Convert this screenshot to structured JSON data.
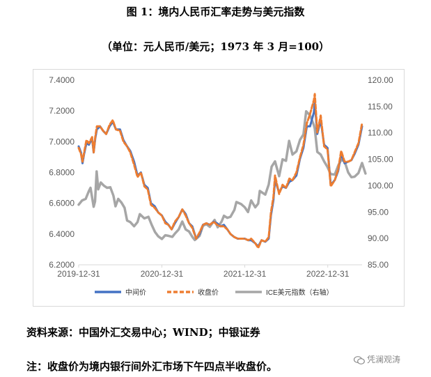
{
  "figure": {
    "title": "图 1：境内人民币汇率走势与美元指数",
    "subtitle": "（单位：元人民币/美元；1973 年 3 月=100）"
  },
  "chart_data": {
    "type": "line",
    "x_labels": [
      "2019-12-31",
      "2020-12-31",
      "2021-12-31",
      "2022-12-31"
    ],
    "x_label_dates": [
      "2019-12-31",
      "2020-12-31",
      "2021-12-31",
      "2022-12-31"
    ],
    "x_range": [
      "2019-12-31",
      "2023-05-31"
    ],
    "y_left": {
      "ticks": [
        "7.4000",
        "7.2000",
        "7.0000",
        "6.8000",
        "6.6000",
        "6.4000",
        "6.2000"
      ],
      "ylim": [
        6.2,
        7.4
      ]
    },
    "y_right": {
      "ticks": [
        "120.00",
        "115.00",
        "110.00",
        "105.00",
        "100.00",
        "95.00",
        "90.00",
        "85.00"
      ],
      "ylim": [
        85,
        120
      ]
    },
    "grid": false,
    "legend_placement": "bottom",
    "series": [
      {
        "name": "中间价",
        "axis": "left",
        "color": "#4472C4",
        "style": "solid",
        "points": [
          [
            "2019-12-31",
            6.97
          ],
          [
            "2020-01-10",
            6.93
          ],
          [
            "2020-01-17",
            6.86
          ],
          [
            "2020-01-24",
            6.92
          ],
          [
            "2020-02-03",
            6.99
          ],
          [
            "2020-02-14",
            6.98
          ],
          [
            "2020-02-28",
            7.02
          ],
          [
            "2020-03-06",
            6.93
          ],
          [
            "2020-03-13",
            7.02
          ],
          [
            "2020-03-20",
            7.08
          ],
          [
            "2020-04-03",
            7.1
          ],
          [
            "2020-04-17",
            7.07
          ],
          [
            "2020-04-30",
            7.05
          ],
          [
            "2020-05-15",
            7.1
          ],
          [
            "2020-05-29",
            7.13
          ],
          [
            "2020-06-12",
            7.08
          ],
          [
            "2020-06-30",
            7.08
          ],
          [
            "2020-07-15",
            7.01
          ],
          [
            "2020-07-31",
            6.97
          ],
          [
            "2020-08-14",
            6.94
          ],
          [
            "2020-08-31",
            6.87
          ],
          [
            "2020-09-15",
            6.78
          ],
          [
            "2020-09-30",
            6.8
          ],
          [
            "2020-10-15",
            6.72
          ],
          [
            "2020-10-30",
            6.7
          ],
          [
            "2020-11-13",
            6.6
          ],
          [
            "2020-11-30",
            6.58
          ],
          [
            "2020-12-15",
            6.54
          ],
          [
            "2020-12-31",
            6.52
          ],
          [
            "2021-01-15",
            6.48
          ],
          [
            "2021-01-29",
            6.46
          ],
          [
            "2021-02-12",
            6.43
          ],
          [
            "2021-02-26",
            6.47
          ],
          [
            "2021-03-15",
            6.51
          ],
          [
            "2021-03-31",
            6.56
          ],
          [
            "2021-04-15",
            6.53
          ],
          [
            "2021-04-30",
            6.47
          ],
          [
            "2021-05-14",
            6.45
          ],
          [
            "2021-05-31",
            6.37
          ],
          [
            "2021-06-15",
            6.4
          ],
          [
            "2021-06-30",
            6.46
          ],
          [
            "2021-07-15",
            6.47
          ],
          [
            "2021-07-30",
            6.46
          ],
          [
            "2021-08-16",
            6.48
          ],
          [
            "2021-08-31",
            6.47
          ],
          [
            "2021-09-15",
            6.45
          ],
          [
            "2021-09-30",
            6.46
          ],
          [
            "2021-10-15",
            6.43
          ],
          [
            "2021-10-29",
            6.4
          ],
          [
            "2021-11-15",
            6.38
          ],
          [
            "2021-11-30",
            6.37
          ],
          [
            "2021-12-15",
            6.37
          ],
          [
            "2021-12-31",
            6.37
          ],
          [
            "2022-01-14",
            6.36
          ],
          [
            "2022-01-28",
            6.36
          ],
          [
            "2022-02-15",
            6.34
          ],
          [
            "2022-02-28",
            6.32
          ],
          [
            "2022-03-15",
            6.36
          ],
          [
            "2022-03-31",
            6.35
          ],
          [
            "2022-04-15",
            6.37
          ],
          [
            "2022-04-25",
            6.52
          ],
          [
            "2022-05-06",
            6.62
          ],
          [
            "2022-05-13",
            6.75
          ],
          [
            "2022-05-31",
            6.67
          ],
          [
            "2022-06-15",
            6.71
          ],
          [
            "2022-06-30",
            6.7
          ],
          [
            "2022-07-15",
            6.74
          ],
          [
            "2022-07-29",
            6.75
          ],
          [
            "2022-08-15",
            6.78
          ],
          [
            "2022-08-31",
            6.89
          ],
          [
            "2022-09-15",
            6.96
          ],
          [
            "2022-09-30",
            7.1
          ],
          [
            "2022-10-14",
            7.1
          ],
          [
            "2022-10-31",
            7.19
          ],
          [
            "2022-11-04",
            7.25
          ],
          [
            "2022-11-15",
            7.05
          ],
          [
            "2022-11-30",
            7.14
          ],
          [
            "2022-12-15",
            6.98
          ],
          [
            "2022-12-30",
            6.96
          ],
          [
            "2023-01-13",
            6.72
          ],
          [
            "2023-01-31",
            6.75
          ],
          [
            "2023-02-15",
            6.81
          ],
          [
            "2023-02-28",
            6.92
          ],
          [
            "2023-03-15",
            6.86
          ],
          [
            "2023-03-31",
            6.87
          ],
          [
            "2023-04-14",
            6.88
          ],
          [
            "2023-04-28",
            6.92
          ],
          [
            "2023-05-15",
            6.98
          ],
          [
            "2023-05-31",
            7.1
          ]
        ]
      },
      {
        "name": "收盘价",
        "axis": "left",
        "color": "#ED7D31",
        "style": "dashed",
        "points": [
          [
            "2019-12-31",
            6.96
          ],
          [
            "2020-01-10",
            6.92
          ],
          [
            "2020-01-17",
            6.87
          ],
          [
            "2020-01-24",
            6.93
          ],
          [
            "2020-02-03",
            7.01
          ],
          [
            "2020-02-14",
            6.99
          ],
          [
            "2020-02-28",
            7.03
          ],
          [
            "2020-03-06",
            6.93
          ],
          [
            "2020-03-13",
            7.03
          ],
          [
            "2020-03-20",
            7.1
          ],
          [
            "2020-04-03",
            7.1
          ],
          [
            "2020-04-17",
            7.07
          ],
          [
            "2020-04-30",
            7.05
          ],
          [
            "2020-05-15",
            7.11
          ],
          [
            "2020-05-29",
            7.14
          ],
          [
            "2020-06-12",
            7.08
          ],
          [
            "2020-06-30",
            7.07
          ],
          [
            "2020-07-15",
            7.0
          ],
          [
            "2020-07-31",
            6.97
          ],
          [
            "2020-08-14",
            6.93
          ],
          [
            "2020-08-31",
            6.85
          ],
          [
            "2020-09-15",
            6.77
          ],
          [
            "2020-09-30",
            6.8
          ],
          [
            "2020-10-15",
            6.71
          ],
          [
            "2020-10-30",
            6.69
          ],
          [
            "2020-11-13",
            6.59
          ],
          [
            "2020-11-30",
            6.57
          ],
          [
            "2020-12-15",
            6.54
          ],
          [
            "2020-12-31",
            6.52
          ],
          [
            "2021-01-15",
            6.47
          ],
          [
            "2021-01-29",
            6.46
          ],
          [
            "2021-02-12",
            6.43
          ],
          [
            "2021-02-26",
            6.48
          ],
          [
            "2021-03-15",
            6.51
          ],
          [
            "2021-03-31",
            6.56
          ],
          [
            "2021-04-15",
            6.52
          ],
          [
            "2021-04-30",
            6.47
          ],
          [
            "2021-05-14",
            6.44
          ],
          [
            "2021-05-31",
            6.37
          ],
          [
            "2021-06-15",
            6.41
          ],
          [
            "2021-06-30",
            6.46
          ],
          [
            "2021-07-15",
            6.47
          ],
          [
            "2021-07-30",
            6.46
          ],
          [
            "2021-08-16",
            6.48
          ],
          [
            "2021-08-31",
            6.46
          ],
          [
            "2021-09-15",
            6.45
          ],
          [
            "2021-09-30",
            6.45
          ],
          [
            "2021-10-15",
            6.43
          ],
          [
            "2021-10-29",
            6.4
          ],
          [
            "2021-11-15",
            6.38
          ],
          [
            "2021-11-30",
            6.37
          ],
          [
            "2021-12-15",
            6.37
          ],
          [
            "2021-12-31",
            6.37
          ],
          [
            "2022-01-14",
            6.36
          ],
          [
            "2022-01-28",
            6.37
          ],
          [
            "2022-02-15",
            6.34
          ],
          [
            "2022-02-28",
            6.31
          ],
          [
            "2022-03-15",
            6.36
          ],
          [
            "2022-03-31",
            6.35
          ],
          [
            "2022-04-15",
            6.38
          ],
          [
            "2022-04-25",
            6.54
          ],
          [
            "2022-05-06",
            6.64
          ],
          [
            "2022-05-13",
            6.78
          ],
          [
            "2022-05-31",
            6.66
          ],
          [
            "2022-06-15",
            6.72
          ],
          [
            "2022-06-30",
            6.7
          ],
          [
            "2022-07-15",
            6.76
          ],
          [
            "2022-07-29",
            6.75
          ],
          [
            "2022-08-15",
            6.8
          ],
          [
            "2022-08-31",
            6.9
          ],
          [
            "2022-09-15",
            6.98
          ],
          [
            "2022-09-30",
            7.12
          ],
          [
            "2022-10-14",
            7.18
          ],
          [
            "2022-10-31",
            7.27
          ],
          [
            "2022-11-04",
            7.31
          ],
          [
            "2022-11-15",
            7.06
          ],
          [
            "2022-11-30",
            7.17
          ],
          [
            "2022-12-15",
            6.97
          ],
          [
            "2022-12-30",
            6.95
          ],
          [
            "2023-01-13",
            6.71
          ],
          [
            "2023-01-31",
            6.75
          ],
          [
            "2023-02-15",
            6.82
          ],
          [
            "2023-02-28",
            6.94
          ],
          [
            "2023-03-15",
            6.87
          ],
          [
            "2023-03-31",
            6.87
          ],
          [
            "2023-04-14",
            6.88
          ],
          [
            "2023-04-28",
            6.93
          ],
          [
            "2023-05-15",
            6.99
          ],
          [
            "2023-05-31",
            7.12
          ]
        ]
      },
      {
        "name": "ICE美元指数（右轴）",
        "axis": "right",
        "color": "#A6A6A6",
        "style": "solid",
        "points": [
          [
            "2019-12-31",
            96.4
          ],
          [
            "2020-01-15",
            97.2
          ],
          [
            "2020-01-31",
            97.5
          ],
          [
            "2020-02-14",
            99.0
          ],
          [
            "2020-02-21",
            99.6
          ],
          [
            "2020-03-06",
            96.0
          ],
          [
            "2020-03-12",
            97.0
          ],
          [
            "2020-03-19",
            102.7
          ],
          [
            "2020-03-26",
            99.3
          ],
          [
            "2020-04-06",
            100.6
          ],
          [
            "2020-04-20",
            100.0
          ],
          [
            "2020-05-04",
            99.6
          ],
          [
            "2020-05-18",
            99.7
          ],
          [
            "2020-06-01",
            98.1
          ],
          [
            "2020-06-10",
            96.1
          ],
          [
            "2020-06-22",
            97.5
          ],
          [
            "2020-07-06",
            96.8
          ],
          [
            "2020-07-20",
            95.8
          ],
          [
            "2020-07-31",
            93.4
          ],
          [
            "2020-08-14",
            93.1
          ],
          [
            "2020-08-31",
            92.3
          ],
          [
            "2020-09-15",
            93.1
          ],
          [
            "2020-09-25",
            94.6
          ],
          [
            "2020-10-15",
            93.8
          ],
          [
            "2020-11-02",
            94.1
          ],
          [
            "2020-11-16",
            92.6
          ],
          [
            "2020-12-01",
            91.2
          ],
          [
            "2020-12-15",
            90.4
          ],
          [
            "2020-12-31",
            89.9
          ],
          [
            "2021-01-15",
            90.6
          ],
          [
            "2021-01-29",
            90.5
          ],
          [
            "2021-02-15",
            90.3
          ],
          [
            "2021-02-26",
            90.9
          ],
          [
            "2021-03-15",
            91.7
          ],
          [
            "2021-03-31",
            93.2
          ],
          [
            "2021-04-15",
            91.7
          ],
          [
            "2021-04-30",
            91.3
          ],
          [
            "2021-05-14",
            90.3
          ],
          [
            "2021-05-25",
            89.7
          ],
          [
            "2021-06-15",
            90.5
          ],
          [
            "2021-06-30",
            92.4
          ],
          [
            "2021-07-15",
            92.7
          ],
          [
            "2021-07-30",
            92.2
          ],
          [
            "2021-08-20",
            93.5
          ],
          [
            "2021-09-03",
            92.1
          ],
          [
            "2021-09-20",
            93.2
          ],
          [
            "2021-09-30",
            94.3
          ],
          [
            "2021-10-15",
            93.9
          ],
          [
            "2021-10-29",
            94.1
          ],
          [
            "2021-11-15",
            95.4
          ],
          [
            "2021-11-24",
            96.9
          ],
          [
            "2021-12-15",
            96.5
          ],
          [
            "2021-12-31",
            95.9
          ],
          [
            "2022-01-14",
            95.0
          ],
          [
            "2022-01-28",
            97.2
          ],
          [
            "2022-02-15",
            95.9
          ],
          [
            "2022-02-28",
            96.6
          ],
          [
            "2022-03-07",
            99.0
          ],
          [
            "2022-03-31",
            98.3
          ],
          [
            "2022-04-15",
            100.2
          ],
          [
            "2022-04-28",
            103.6
          ],
          [
            "2022-05-13",
            104.6
          ],
          [
            "2022-05-31",
            101.8
          ],
          [
            "2022-06-15",
            105.0
          ],
          [
            "2022-06-30",
            104.7
          ],
          [
            "2022-07-14",
            108.5
          ],
          [
            "2022-07-29",
            105.9
          ],
          [
            "2022-08-15",
            106.5
          ],
          [
            "2022-08-31",
            108.7
          ],
          [
            "2022-09-15",
            109.7
          ],
          [
            "2022-09-27",
            114.1
          ],
          [
            "2022-10-14",
            113.3
          ],
          [
            "2022-10-31",
            111.5
          ],
          [
            "2022-11-04",
            110.8
          ],
          [
            "2022-11-15",
            106.4
          ],
          [
            "2022-11-30",
            105.9
          ],
          [
            "2022-12-15",
            104.6
          ],
          [
            "2022-12-30",
            103.5
          ],
          [
            "2023-01-13",
            102.2
          ],
          [
            "2023-01-31",
            102.1
          ],
          [
            "2023-02-15",
            103.8
          ],
          [
            "2023-02-28",
            104.9
          ],
          [
            "2023-03-15",
            104.6
          ],
          [
            "2023-03-31",
            102.5
          ],
          [
            "2023-04-14",
            101.6
          ],
          [
            "2023-04-28",
            101.7
          ],
          [
            "2023-05-15",
            102.4
          ],
          [
            "2023-05-31",
            104.3
          ],
          [
            "2023-06-15",
            102.3
          ]
        ]
      }
    ]
  },
  "notes": {
    "source": "资料来源：中国外汇交易中心；WIND；中银证券",
    "footnote": "注：收盘价为境内银行间外汇市场下午四点半收盘价。"
  },
  "watermark": {
    "text": "凭澜观涛",
    "icon": "wechat-icon"
  }
}
